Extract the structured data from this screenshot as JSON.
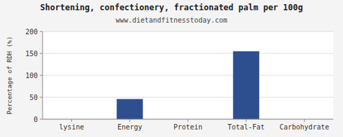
{
  "chart_data": {
    "type": "bar",
    "title": "Shortening, confectionery, fractionated palm per 100g",
    "subtitle": "www.dietandfitnesstoday.com",
    "ylabel": "Percentage of RDH (%)",
    "categories": [
      "lysine",
      "Energy",
      "Protein",
      "Total-Fat",
      "Carbohydrate"
    ],
    "values": [
      0,
      46,
      0,
      155,
      0
    ],
    "color": "#2e4f8f",
    "ylim": [
      0,
      200
    ],
    "yticks": [
      0,
      50,
      100,
      150,
      200
    ],
    "grid": true
  }
}
